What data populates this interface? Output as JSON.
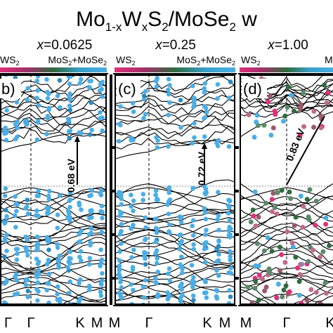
{
  "figure": {
    "title": {
      "base": "Mo",
      "s1": "1-x",
      "w": "W",
      "s2": "x",
      "s": "S",
      "s3": "2",
      "sep": "/MoSe",
      "s4": "2",
      "tail": " w"
    }
  },
  "colors": {
    "ws2": "#e0307a",
    "mix": "#4aaee6",
    "dark_green": "#2f6b3e",
    "band": "#000000",
    "fermi": "#888888"
  },
  "chart_data": [
    {
      "type": "line",
      "panel": "b",
      "x_label_var": "x",
      "x_label_value": "=0.0625",
      "colorbar_left": "WS",
      "colorbar_left_sub": "2",
      "colorbar_right_a": "MoS",
      "colorbar_right_a_sub": "2",
      "colorbar_right_b": "+MoSe",
      "colorbar_right_b_sub": "2",
      "kpoints": [
        "Γ",
        "K",
        "M"
      ],
      "gap_label": "0.68 eV",
      "gap_value": 0.68,
      "marker_color": "mix"
    },
    {
      "type": "line",
      "panel": "c",
      "x_label_var": "x",
      "x_label_value": "=0.25",
      "colorbar_left": "WS",
      "colorbar_left_sub": "2",
      "colorbar_right_a": "MoS",
      "colorbar_right_a_sub": "2",
      "colorbar_right_b": "+MoSe",
      "colorbar_right_b_sub": "2",
      "kpoints": [
        "M",
        "Γ",
        "K",
        "M"
      ],
      "gap_label": "0.72 eV",
      "gap_value": 0.72,
      "marker_color": "mix"
    },
    {
      "type": "line",
      "panel": "d",
      "x_label_var": "x",
      "x_label_value": "=1.00",
      "colorbar_left": "WS",
      "colorbar_left_sub": "2",
      "colorbar_right_a": "M",
      "colorbar_right_a_sub": "",
      "colorbar_right_b": "",
      "colorbar_right_b_sub": "",
      "kpoints": [
        "M",
        "Γ",
        "K"
      ],
      "gap_label": "0.83 eV",
      "gap_value": 0.83,
      "marker_color": "mixed"
    }
  ]
}
